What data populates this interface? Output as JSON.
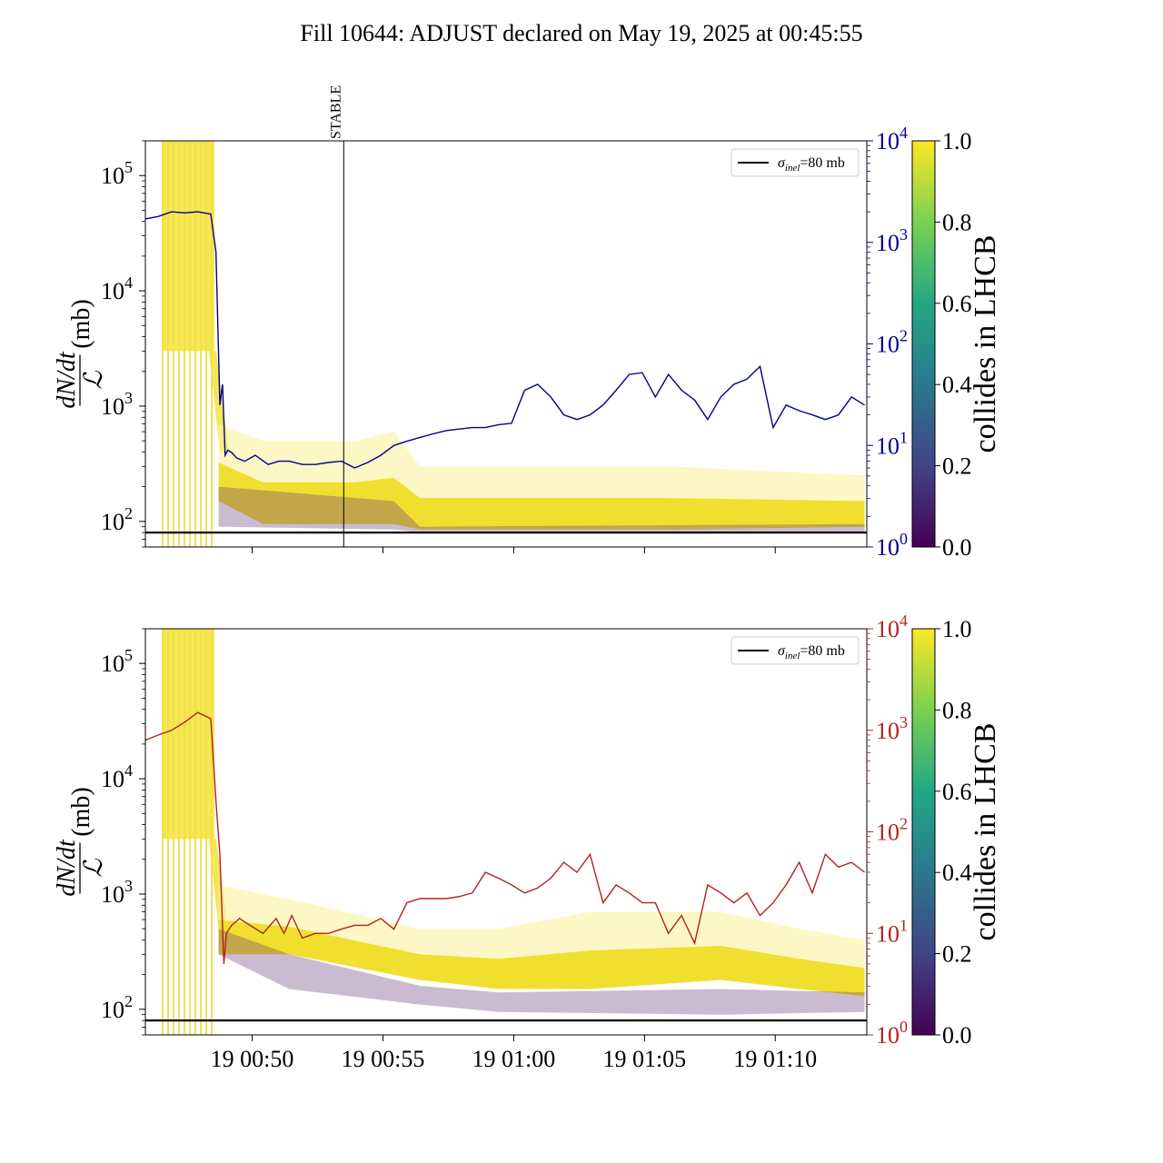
{
  "chart_data": {
    "type": "line",
    "title": "Fill 10644: ADJUST declared on May 19, 2025 at 00:45:55",
    "x_tick_labels": [
      "19 00:50",
      "19 00:55",
      "19 01:00",
      "19 01:05",
      "19 01:10"
    ],
    "x_ticks": [
      "2025-05-19 00:50",
      "2025-05-19 00:55",
      "2025-05-19 01:00",
      "2025-05-19 01:05",
      "2025-05-19 01:10"
    ],
    "xlim": [
      "2025-05-19 00:45:55",
      "2025-05-19 01:13:30"
    ],
    "y_scale": "log",
    "ylim": [
      60,
      200000
    ],
    "y_ticks": [
      100,
      1000,
      10000,
      100000
    ],
    "y_tick_labels": [
      {
        "base": "10",
        "exp": "2"
      },
      {
        "base": "10",
        "exp": "3"
      },
      {
        "base": "10",
        "exp": "4"
      },
      {
        "base": "10",
        "exp": "5"
      }
    ],
    "ylabel": {
      "fraction_numerator": "dN/dt",
      "fraction_denominator": "ℒ",
      "unit": "(mb)"
    },
    "y2_scale": "log",
    "y2lim": [
      1,
      10000
    ],
    "y2_ticks": [
      1,
      10,
      100,
      1000,
      10000
    ],
    "y2_tick_labels": [
      {
        "base": "10",
        "exp": "0"
      },
      {
        "base": "10",
        "exp": "1"
      },
      {
        "base": "10",
        "exp": "2"
      },
      {
        "base": "10",
        "exp": "3"
      },
      {
        "base": "10",
        "exp": "4"
      }
    ],
    "reference_line": {
      "y": 80,
      "legend": "σinel=80 mb",
      "legend_symbol": "σ",
      "legend_sub": "inel",
      "legend_rest": "=80 mb",
      "color": "#000000"
    },
    "colorbar": {
      "label": "collides in LHCB",
      "ticks": [
        "0.0",
        "0.2",
        "0.4",
        "0.6",
        "0.8",
        "1.0"
      ],
      "colormap": "viridis",
      "min": 0.0,
      "max": 1.0
    },
    "panels": [
      {
        "id": "top",
        "marker": {
          "label": "STABLE",
          "x": "2025-05-19 00:53:30"
        },
        "show_x_tick_labels": false,
        "y2_color": "#00008b",
        "y2_series": {
          "x_minutes_after_adjust": [
            0,
            0.5,
            1,
            1.5,
            2,
            2.5,
            2.7,
            2.85,
            2.95,
            3.05,
            3.15,
            3.3,
            3.5,
            3.8,
            4.2,
            4.7,
            5.1,
            5.5,
            6,
            6.5,
            7,
            7.5,
            8,
            8.5,
            9,
            9.5,
            10,
            10.5,
            11,
            11.5,
            12,
            12.5,
            13,
            13.5,
            14,
            14.5,
            15,
            15.5,
            16,
            16.5,
            17,
            17.5,
            18,
            18.5,
            19,
            19.5,
            20,
            20.5,
            21,
            21.5,
            22,
            22.5,
            23,
            23.5,
            24,
            24.5,
            25,
            25.5,
            26,
            26.5,
            27,
            27.5
          ],
          "y": [
            1700,
            1800,
            2000,
            1950,
            2000,
            1900,
            800,
            25,
            40,
            8,
            9,
            8.5,
            7.5,
            7,
            8,
            6.5,
            7,
            7,
            6.5,
            6.5,
            6.8,
            7,
            6,
            6.8,
            8,
            10,
            11,
            12,
            13,
            14,
            14.5,
            15,
            15,
            16,
            16.5,
            35,
            40,
            30,
            20,
            18,
            20,
            25,
            35,
            50,
            52,
            30,
            50,
            35,
            28,
            18,
            30,
            40,
            45,
            60,
            15,
            25,
            22,
            20,
            18,
            20,
            30,
            25
          ]
        },
        "yellow_band": {
          "x_minutes_after_adjust": [
            2.8,
            4.5,
            8,
            9.5,
            10.5,
            14,
            20,
            27.5
          ],
          "low": [
            150,
            95,
            95,
            95,
            85,
            85,
            85,
            90
          ],
          "high": [
            700,
            500,
            500,
            600,
            300,
            300,
            300,
            250
          ]
        },
        "purple_band": {
          "x_minutes_after_adjust": [
            2.8,
            9.5,
            10.5,
            27.5
          ],
          "low": [
            90,
            85,
            80,
            80
          ],
          "high": [
            200,
            150,
            90,
            95
          ]
        }
      },
      {
        "id": "bottom",
        "show_x_tick_labels": true,
        "y2_color": "#b22222",
        "y2_series": {
          "x_minutes_after_adjust": [
            0,
            0.5,
            1,
            1.5,
            2,
            2.5,
            2.7,
            2.85,
            3.0,
            3.1,
            3.3,
            3.6,
            4.0,
            4.5,
            5.0,
            5.3,
            5.6,
            6.0,
            6.5,
            7.0,
            7.5,
            8.0,
            8.5,
            9.0,
            9.5,
            10.0,
            10.5,
            11.0,
            11.5,
            12.0,
            12.5,
            13.0,
            13.5,
            14.0,
            14.5,
            15.0,
            15.5,
            16.0,
            16.5,
            17.0,
            17.5,
            18.0,
            18.5,
            19.0,
            19.5,
            20.0,
            20.5,
            21.0,
            21.5,
            22.0,
            22.5,
            23.0,
            23.5,
            24.0,
            24.5,
            25.0,
            25.5,
            26.0,
            26.5,
            27.0,
            27.5
          ],
          "y": [
            800,
            900,
            1000,
            1200,
            1500,
            1300,
            200,
            60,
            5,
            10,
            12,
            14,
            12,
            10,
            14,
            10,
            15,
            9,
            10,
            10,
            11,
            12,
            12,
            14,
            11,
            20,
            22,
            22,
            22,
            23,
            25,
            40,
            35,
            30,
            25,
            28,
            35,
            50,
            40,
            60,
            20,
            30,
            25,
            20,
            20,
            10,
            15,
            8,
            30,
            25,
            20,
            25,
            15,
            20,
            30,
            50,
            25,
            60,
            45,
            50,
            40
          ]
        },
        "yellow_band": {
          "x_minutes_after_adjust": [
            2.8,
            5.5,
            10.5,
            13.5,
            17,
            22,
            25,
            27.5
          ],
          "low": [
            300,
            300,
            180,
            150,
            150,
            180,
            150,
            130
          ],
          "high": [
            1200,
            900,
            500,
            500,
            700,
            700,
            500,
            400
          ]
        },
        "purple_band": {
          "x_minutes_after_adjust": [
            2.8,
            5.5,
            10.5,
            13.5,
            22,
            27.5
          ],
          "low": [
            300,
            150,
            110,
            95,
            90,
            95
          ],
          "high": [
            500,
            300,
            160,
            140,
            150,
            140
          ]
        }
      }
    ]
  }
}
